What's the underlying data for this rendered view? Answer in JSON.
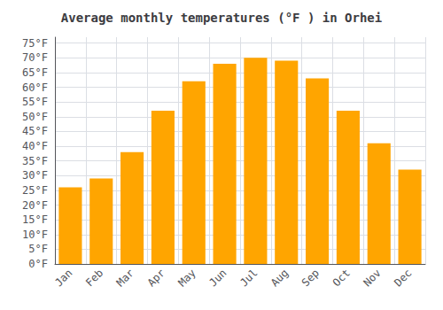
{
  "chart_data": {
    "type": "bar",
    "title": "Average monthly temperatures (°F ) in Orhei",
    "categories": [
      "Jan",
      "Feb",
      "Mar",
      "Apr",
      "May",
      "Jun",
      "Jul",
      "Aug",
      "Sep",
      "Oct",
      "Nov",
      "Dec"
    ],
    "values": [
      26,
      29,
      38,
      52,
      62,
      68,
      70,
      69,
      63,
      52,
      41,
      32
    ],
    "color": "#FFA500",
    "ylim": [
      0,
      77
    ],
    "yticks": [
      {
        "value": 0,
        "label": "0°F"
      },
      {
        "value": 5,
        "label": "5°F"
      },
      {
        "value": 10,
        "label": "10°F"
      },
      {
        "value": 15,
        "label": "15°F"
      },
      {
        "value": 20,
        "label": "20°F"
      },
      {
        "value": 25,
        "label": "25°F"
      },
      {
        "value": 30,
        "label": "30°F"
      },
      {
        "value": 35,
        "label": "35°F"
      },
      {
        "value": 40,
        "label": "40°F"
      },
      {
        "value": 45,
        "label": "45°F"
      },
      {
        "value": 50,
        "label": "50°F"
      },
      {
        "value": 55,
        "label": "55°F"
      },
      {
        "value": 60,
        "label": "60°F"
      },
      {
        "value": 65,
        "label": "65°F"
      },
      {
        "value": 70,
        "label": "70°F"
      },
      {
        "value": 75,
        "label": "75°F"
      }
    ],
    "grid": true
  }
}
